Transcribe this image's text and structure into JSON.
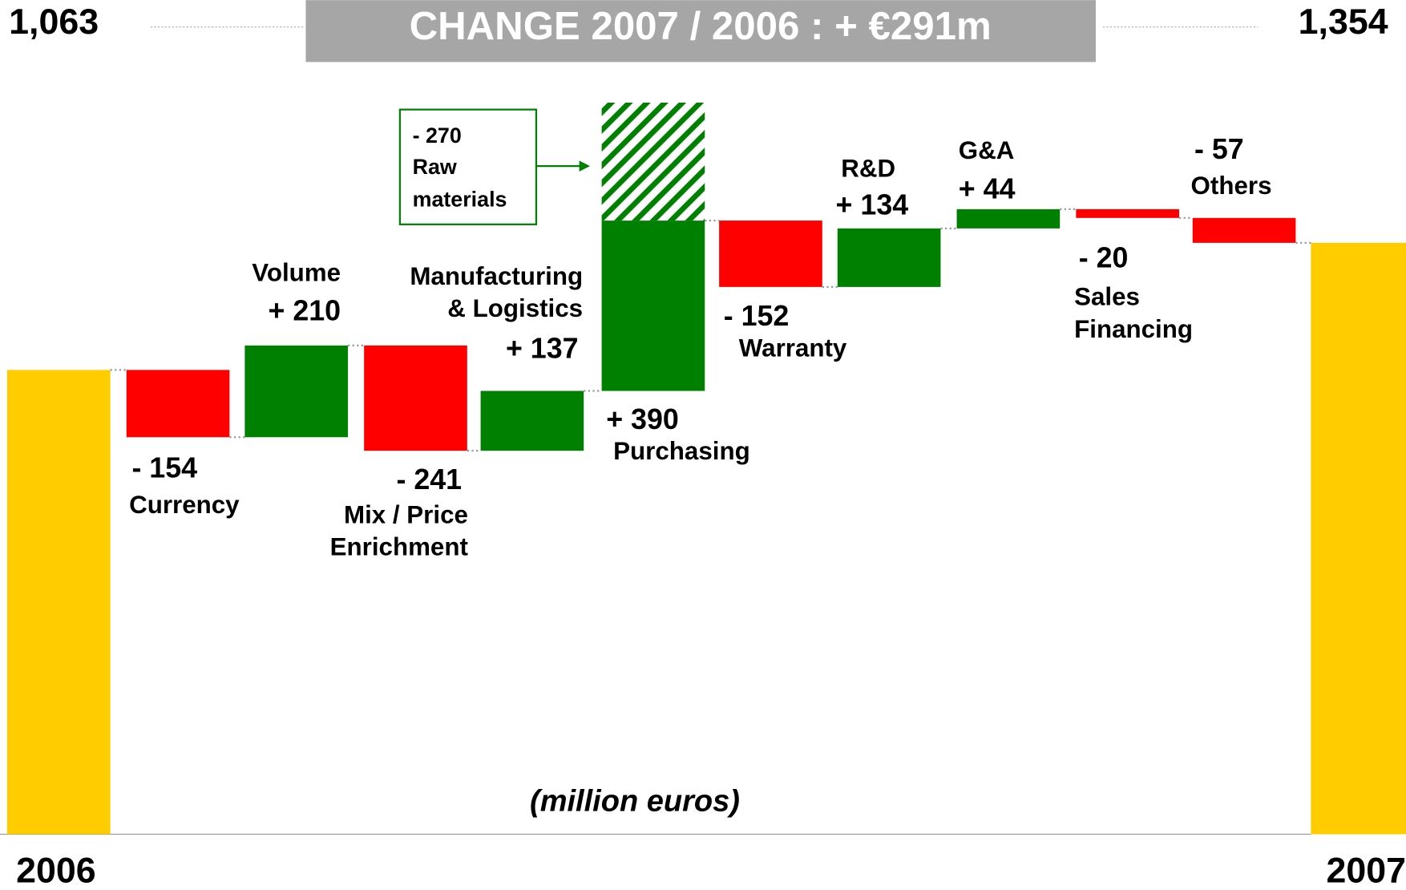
{
  "chart_data": {
    "type": "waterfall",
    "title": "CHANGE 2007 / 2006 : + €291m",
    "note": "(million euros)",
    "start": {
      "label": "2006",
      "value": 1063,
      "value_label": "1,063"
    },
    "end": {
      "label": "2007",
      "value": 1354,
      "value_label": "1,354"
    },
    "categories": [
      "Currency",
      "Volume",
      "Mix / Price Enrichment",
      "Manufacturing & Logistics",
      "Purchasing",
      "Warranty",
      "R&D",
      "G&A",
      "Sales Financing",
      "Others"
    ],
    "values": [
      -154,
      210,
      -241,
      137,
      390,
      -152,
      134,
      44,
      -20,
      -57
    ],
    "value_labels": [
      "- 154",
      "+ 210",
      "- 241",
      "+ 137",
      "+ 390",
      "- 152",
      "+ 134",
      "+ 44",
      "- 20",
      "- 57"
    ],
    "colors": {
      "increase": "#008000",
      "decrease": "#ff0000",
      "total": "#ffcc00"
    },
    "annotation": {
      "category": "Purchasing",
      "value": -270,
      "value_label": "- 270",
      "label": "Raw materials"
    }
  }
}
